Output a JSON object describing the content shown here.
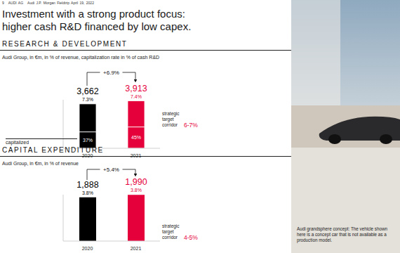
{
  "slide": {
    "header": [
      "9",
      "AUDI AG",
      "Audi J.P. Morgan Fieldtrip April 19, 2022"
    ],
    "title": [
      "Investment with a strong product focus:",
      "higher cash R&D financed by low capex."
    ],
    "caption": "Audi grandsphere concept: The vehicle shown here is a concept car that is not available as a production model."
  },
  "chart_data": [
    {
      "type": "bar",
      "title": "RESEARCH & DEVELOPMENT",
      "subtitle": "Audi Group, in €m, in % of revenue, capitalization rate in % of cash R&D",
      "categories": [
        "2020",
        "2021"
      ],
      "stacked": true,
      "series": [
        {
          "name": "capitalized",
          "colors": [
            "#000000",
            "#e5003b"
          ],
          "values": [
            1355,
            1761
          ],
          "rates": [
            {
              "value": 37,
              "label": "37%"
            },
            {
              "value": 45,
              "label": "45%"
            }
          ]
        },
        {
          "colors": [
            "#000000",
            "#e5003b"
          ],
          "values": [
            2307,
            2152
          ]
        }
      ],
      "totals": [
        3662,
        3913
      ],
      "revenue_share": [
        {
          "value": 7.3,
          "label": "7.3%"
        },
        {
          "value": 7.4,
          "label": "7.4%"
        }
      ],
      "change": {
        "value": 6.9,
        "label": "+6.9%"
      },
      "target": {
        "text": "strategic target corridor",
        "label": "6-7%"
      },
      "ylim": [
        0,
        4000
      ],
      "tick_labels": false,
      "grid": false,
      "data_labels": true
    },
    {
      "type": "bar",
      "title": "CAPITAL EXPENDITURE",
      "subtitle": "Audi Group, in €m, in % of revenue",
      "categories": [
        "2020",
        "2021"
      ],
      "values": [
        1888,
        1990
      ],
      "value_labels": [
        "1,888",
        "1,990"
      ],
      "colors": [
        "#000000",
        "#e5003b"
      ],
      "revenue_share": [
        {
          "value": 3.8,
          "label": "3.8%"
        },
        {
          "value": 3.8,
          "label": "3.8%"
        }
      ],
      "change": {
        "value": 5.4,
        "label": "+5.4%"
      },
      "target": {
        "text": "strategic target corridor",
        "label": "4-5%"
      },
      "ylim": [
        0,
        2000
      ],
      "tick_labels": false,
      "grid": false,
      "data_labels": true
    }
  ]
}
